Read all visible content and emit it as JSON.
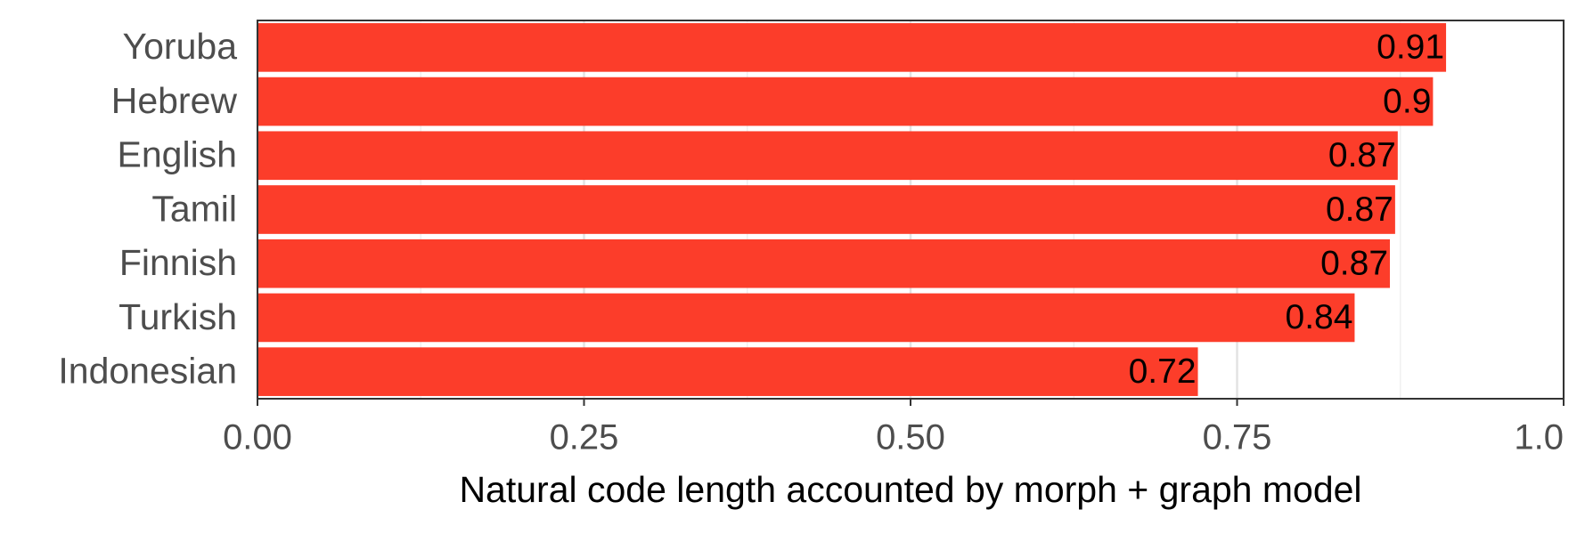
{
  "chart_data": {
    "type": "bar",
    "orientation": "horizontal",
    "x_label": "Natural code length accounted by morph + graph model",
    "categories": [
      "Yoruba",
      "Hebrew",
      "English",
      "Tamil",
      "Finnish",
      "Turkish",
      "Indonesian"
    ],
    "values": [
      0.91,
      0.9,
      0.873,
      0.871,
      0.867,
      0.84,
      0.72
    ],
    "value_labels": [
      "0.91",
      "0.9",
      "0.87",
      "0.87",
      "0.87",
      "0.84",
      "0.72"
    ],
    "color": "#fc3d2a",
    "xlim": [
      0,
      1
    ],
    "xticks": [
      {
        "value": 0,
        "label": "0.00"
      },
      {
        "value": 0.25,
        "label": "0.25"
      },
      {
        "value": 0.5,
        "label": "0.50"
      },
      {
        "value": 0.75,
        "label": "0.75"
      },
      {
        "value": 1,
        "label": "1.0"
      }
    ],
    "minor_xticks": [
      0.125,
      0.375,
      0.625,
      0.875
    ],
    "grid": true
  }
}
